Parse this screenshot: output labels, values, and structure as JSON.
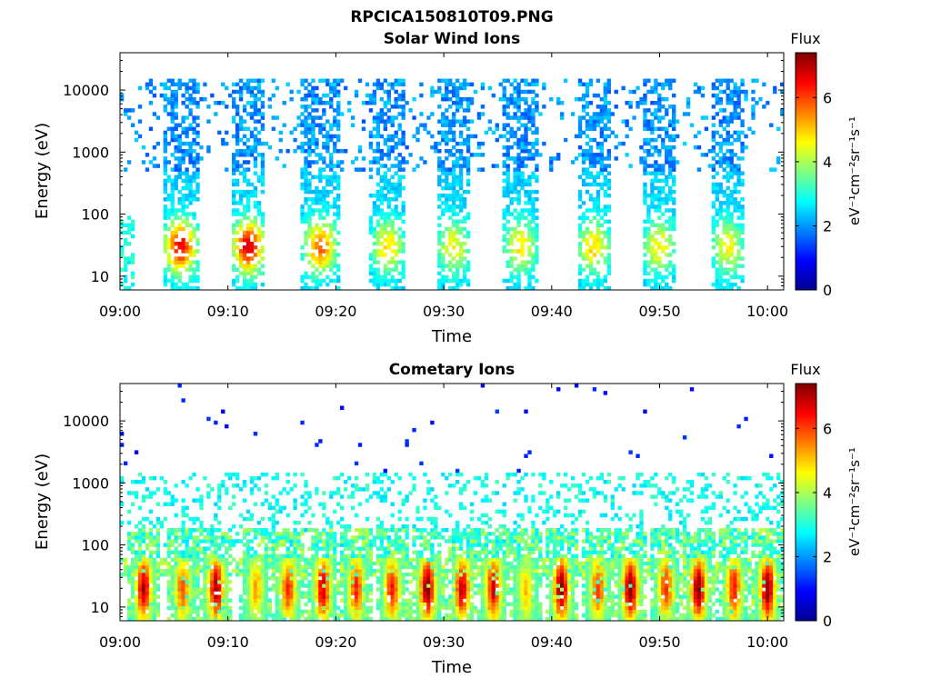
{
  "figure": {
    "file_title": "RPCICA150810T09.PNG"
  },
  "colorbar": {
    "title": "Flux",
    "unit_label": "eV⁻¹cm⁻²sr⁻¹s⁻¹",
    "ticks": [
      0,
      2,
      4,
      6
    ],
    "range": [
      0,
      7.4
    ],
    "colormap": "jet",
    "colors": [
      "#00008f",
      "#0000ff",
      "#0080ff",
      "#00ffff",
      "#80ff80",
      "#ffff00",
      "#ff8000",
      "#ff0000",
      "#800000"
    ]
  },
  "chart_data": [
    {
      "type": "heatmap",
      "title": "Solar Wind Ions",
      "xlabel": "Time",
      "ylabel": "Energy (eV)",
      "x_tick_labels": [
        "09:00",
        "09:10",
        "09:20",
        "09:30",
        "09:40",
        "09:50",
        "10:00"
      ],
      "x_ticks_minutes": [
        0,
        10,
        20,
        30,
        40,
        50,
        60
      ],
      "xlim_minutes": [
        0,
        61.5
      ],
      "yscale": "log",
      "y_tick_labels": [
        "10",
        "100",
        "1000",
        "10000"
      ],
      "y_ticks": [
        10,
        100,
        1000,
        10000
      ],
      "ylim": [
        6,
        40000
      ],
      "clim": [
        0,
        7.4
      ],
      "sweep_period_minutes": 6.3,
      "sweep_centers_minutes": [
        0.5,
        6.2,
        12.1,
        18.4,
        24.6,
        31.0,
        37.2,
        43.8,
        50.1,
        56.4
      ],
      "dense_bands_minutes": [
        [
          3.9,
          7.3
        ],
        [
          10.3,
          13.5
        ],
        [
          16.8,
          20.3
        ],
        [
          23.1,
          26.5
        ],
        [
          29.3,
          32.5
        ],
        [
          35.5,
          38.8
        ],
        [
          42.3,
          45.5
        ],
        [
          48.4,
          51.5
        ],
        [
          54.8,
          57.9
        ]
      ],
      "main_energy_band_eV": [
        500,
        15000
      ],
      "main_band_flux": 1.5,
      "low_energy_peak_eV": 30,
      "low_energy_peak_flux": [
        5.0,
        6.3,
        6.5,
        5.6,
        4.7,
        4.4,
        4.6,
        4.7,
        4.5,
        4.4
      ],
      "grid": false
    },
    {
      "type": "heatmap",
      "title": "Cometary Ions",
      "xlabel": "Time",
      "ylabel": "Energy (eV)",
      "x_tick_labels": [
        "09:00",
        "09:10",
        "09:20",
        "09:30",
        "09:40",
        "09:50",
        "10:00"
      ],
      "x_ticks_minutes": [
        0,
        10,
        20,
        30,
        40,
        50,
        60
      ],
      "xlim_minutes": [
        0,
        61.5
      ],
      "yscale": "log",
      "y_tick_labels": [
        "10",
        "100",
        "1000",
        "10000"
      ],
      "y_ticks": [
        10,
        100,
        1000,
        10000
      ],
      "ylim": [
        6,
        40000
      ],
      "clim": [
        0,
        7.4
      ],
      "sweep_centers_minutes": [
        2.2,
        5.8,
        8.9,
        12.6,
        15.6,
        18.8,
        21.9,
        25.2,
        28.5,
        31.7,
        34.6,
        37.6,
        40.9,
        44.3,
        47.3,
        50.6,
        53.6,
        56.9,
        60.0
      ],
      "peak_energy_eV": 20,
      "peak_flux": [
        6.8,
        5.6,
        6.9,
        5.0,
        6.0,
        6.6,
        6.0,
        6.2,
        7.2,
        6.7,
        6.6,
        4.8,
        7.2,
        5.8,
        7.2,
        6.0,
        7.2,
        6.2,
        7.2
      ],
      "scatter_energy_band_eV": [
        100,
        1500
      ],
      "scatter_flux": 2.5,
      "background_energy_eV": 40,
      "background_flux": 3.0,
      "grid": false
    }
  ]
}
